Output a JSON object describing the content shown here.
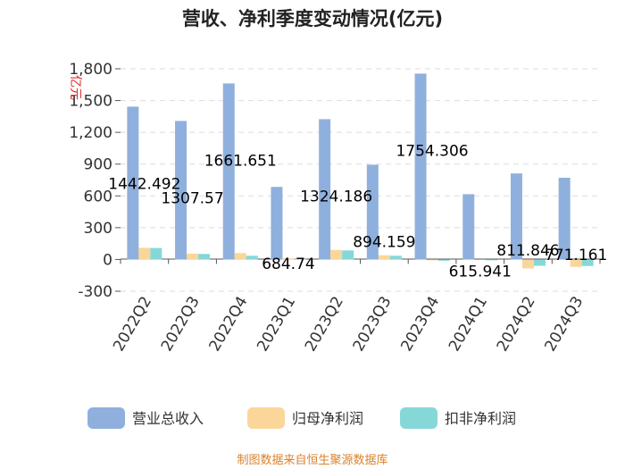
{
  "chart_data": {
    "type": "bar",
    "title": "营收、净利季度变动情况(亿元)",
    "ylabel": "亿元",
    "xlabel": "",
    "ylim": [
      -300,
      1800
    ],
    "yticks": [
      -300,
      0,
      300,
      600,
      900,
      1200,
      1500,
      1800
    ],
    "ytick_labels": [
      "-300",
      "0",
      "300",
      "600",
      "900",
      "1,200",
      "1,500",
      "1,800"
    ],
    "grid": true,
    "legend_position": "bottom",
    "categories": [
      "2022Q2",
      "2022Q3",
      "2022Q4",
      "2023Q1",
      "2023Q2",
      "2023Q3",
      "2023Q4",
      "2024Q1",
      "2024Q2",
      "2024Q3"
    ],
    "series": [
      {
        "name": "营业总收入",
        "color": "#8fb0dd",
        "values": [
          1442.492,
          1307.57,
          1661.651,
          684.74,
          1324.186,
          894.159,
          1754.306,
          615.941,
          811.846,
          771.161
        ],
        "labels": [
          "1442.492",
          "1307.57",
          "1661.651",
          "684.74",
          "1324.186",
          "894.159",
          "1754.306",
          "615.941",
          "811.846",
          "771.161"
        ]
      },
      {
        "name": "归母净利润",
        "color": "#fbd69a",
        "values": [
          110,
          55,
          60,
          10,
          90,
          40,
          -8,
          -4,
          -85,
          -70
        ]
      },
      {
        "name": "扣非净利润",
        "color": "#86d8d8",
        "values": [
          108,
          52,
          35,
          5,
          85,
          35,
          -12,
          -8,
          -60,
          -62
        ]
      }
    ]
  },
  "source_note": "制图数据来自恒生聚源数据库"
}
